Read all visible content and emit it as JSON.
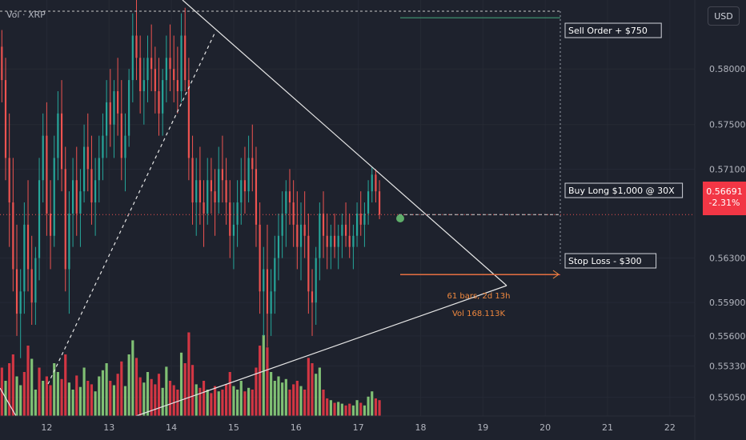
{
  "legend": {
    "volume_label": "Vol · XRP"
  },
  "currency_button": "USD",
  "last_price": {
    "value": "0.56691",
    "change": "-2.31%",
    "color": "#f23645"
  },
  "annotations": {
    "sell_order": "Sell Order + $750",
    "buy_long": "Buy Long $1,000 @ 30X",
    "stop_loss": "Stop Loss - $300",
    "range_bars": "61 bars, 2d 13h",
    "range_vol": "Vol 168.113K"
  },
  "colors": {
    "background": "#1e222d",
    "up": "#26a69a",
    "down": "#ef5350",
    "volume_up": "#8bd17c",
    "volume_down": "#e53946",
    "target_line": "#3f8f6e",
    "stop_line": "#d84346",
    "range_arrow": "#f0883e",
    "trendline": "#e6e6e6",
    "marker": "#5fae6a"
  },
  "chart_data": {
    "type": "candlestick",
    "symbol": "XRP",
    "currency": "USD",
    "x_ticks": [
      "12",
      "13",
      "14",
      "15",
      "16",
      "17",
      "18",
      "19",
      "20",
      "21",
      "22"
    ],
    "y_ticks": [
      "0.58000",
      "0.57500",
      "0.57100",
      "0.56300",
      "0.55900",
      "0.55600",
      "0.55330",
      "0.55050"
    ],
    "y_range": [
      0.5488,
      0.5862
    ],
    "x_range": [
      11.25,
      22.4
    ],
    "last_price": 0.56691,
    "last_change_pct": -2.31,
    "levels": {
      "sell_order": 0.5846,
      "buy_long": 0.56691,
      "stop_loss": 0.5615
    },
    "candles": [
      [
        11.28,
        0.582,
        0.5835,
        0.577,
        0.579
      ],
      [
        11.34,
        0.579,
        0.581,
        0.57,
        0.572
      ],
      [
        11.4,
        0.572,
        0.576,
        0.564,
        0.568
      ],
      [
        11.46,
        0.568,
        0.572,
        0.56,
        0.562
      ],
      [
        11.52,
        0.562,
        0.566,
        0.556,
        0.558
      ],
      [
        11.58,
        0.558,
        0.562,
        0.554,
        0.56
      ],
      [
        11.64,
        0.56,
        0.568,
        0.558,
        0.566
      ],
      [
        11.7,
        0.566,
        0.57,
        0.56,
        0.562
      ],
      [
        11.76,
        0.562,
        0.565,
        0.557,
        0.559
      ],
      [
        11.82,
        0.559,
        0.564,
        0.557,
        0.563
      ],
      [
        11.88,
        0.563,
        0.572,
        0.561,
        0.57
      ],
      [
        11.94,
        0.57,
        0.576,
        0.568,
        0.574
      ],
      [
        12.0,
        0.574,
        0.577,
        0.565,
        0.567
      ],
      [
        12.06,
        0.567,
        0.57,
        0.562,
        0.565
      ],
      [
        12.12,
        0.565,
        0.574,
        0.564,
        0.572
      ],
      [
        12.18,
        0.572,
        0.578,
        0.57,
        0.576
      ],
      [
        12.24,
        0.576,
        0.579,
        0.569,
        0.571
      ],
      [
        12.3,
        0.571,
        0.573,
        0.56,
        0.562
      ],
      [
        12.36,
        0.562,
        0.569,
        0.558,
        0.567
      ],
      [
        12.42,
        0.567,
        0.572,
        0.564,
        0.57
      ],
      [
        12.48,
        0.57,
        0.573,
        0.565,
        0.567
      ],
      [
        12.54,
        0.567,
        0.571,
        0.564,
        0.569
      ],
      [
        12.6,
        0.569,
        0.575,
        0.568,
        0.573
      ],
      [
        12.66,
        0.573,
        0.576,
        0.569,
        0.571
      ],
      [
        12.72,
        0.571,
        0.574,
        0.566,
        0.568
      ],
      [
        12.78,
        0.568,
        0.572,
        0.565,
        0.57
      ],
      [
        12.84,
        0.57,
        0.574,
        0.568,
        0.572
      ],
      [
        12.9,
        0.572,
        0.576,
        0.57,
        0.574
      ],
      [
        12.96,
        0.574,
        0.579,
        0.572,
        0.577
      ],
      [
        13.02,
        0.577,
        0.58,
        0.573,
        0.575
      ],
      [
        13.08,
        0.575,
        0.579,
        0.572,
        0.578
      ],
      [
        13.14,
        0.578,
        0.581,
        0.574,
        0.576
      ],
      [
        13.2,
        0.576,
        0.579,
        0.57,
        0.572
      ],
      [
        13.26,
        0.572,
        0.576,
        0.569,
        0.574
      ],
      [
        13.32,
        0.574,
        0.58,
        0.573,
        0.579
      ],
      [
        13.38,
        0.579,
        0.585,
        0.577,
        0.583
      ],
      [
        13.44,
        0.583,
        0.5862,
        0.579,
        0.581
      ],
      [
        13.5,
        0.581,
        0.583,
        0.576,
        0.578
      ],
      [
        13.56,
        0.578,
        0.581,
        0.575,
        0.579
      ],
      [
        13.62,
        0.579,
        0.583,
        0.577,
        0.581
      ],
      [
        13.68,
        0.581,
        0.584,
        0.578,
        0.58
      ],
      [
        13.74,
        0.58,
        0.582,
        0.576,
        0.578
      ],
      [
        13.8,
        0.578,
        0.581,
        0.574,
        0.576
      ],
      [
        13.86,
        0.576,
        0.58,
        0.574,
        0.579
      ],
      [
        13.92,
        0.579,
        0.583,
        0.577,
        0.581
      ],
      [
        13.98,
        0.581,
        0.584,
        0.578,
        0.58
      ],
      [
        14.04,
        0.58,
        0.583,
        0.577,
        0.579
      ],
      [
        14.1,
        0.579,
        0.582,
        0.576,
        0.578
      ],
      [
        14.16,
        0.578,
        0.585,
        0.577,
        0.583
      ],
      [
        14.22,
        0.583,
        0.5855,
        0.578,
        0.579
      ],
      [
        14.28,
        0.579,
        0.581,
        0.57,
        0.572
      ],
      [
        14.34,
        0.572,
        0.574,
        0.566,
        0.568
      ],
      [
        14.4,
        0.568,
        0.572,
        0.565,
        0.57
      ],
      [
        14.46,
        0.57,
        0.573,
        0.566,
        0.568
      ],
      [
        14.52,
        0.568,
        0.57,
        0.564,
        0.567
      ],
      [
        14.58,
        0.567,
        0.572,
        0.566,
        0.57
      ],
      [
        14.64,
        0.57,
        0.572,
        0.567,
        0.569
      ],
      [
        14.7,
        0.569,
        0.571,
        0.565,
        0.568
      ],
      [
        14.76,
        0.568,
        0.573,
        0.567,
        0.571
      ],
      [
        14.82,
        0.571,
        0.574,
        0.568,
        0.57
      ],
      [
        14.88,
        0.57,
        0.572,
        0.566,
        0.568
      ],
      [
        14.94,
        0.568,
        0.57,
        0.563,
        0.565
      ],
      [
        15.0,
        0.565,
        0.568,
        0.562,
        0.566
      ],
      [
        15.06,
        0.566,
        0.57,
        0.564,
        0.568
      ],
      [
        15.12,
        0.568,
        0.572,
        0.566,
        0.57
      ],
      [
        15.18,
        0.57,
        0.573,
        0.567,
        0.569
      ],
      [
        15.24,
        0.569,
        0.574,
        0.568,
        0.572
      ],
      [
        15.3,
        0.572,
        0.575,
        0.569,
        0.571
      ],
      [
        15.36,
        0.571,
        0.573,
        0.564,
        0.566
      ],
      [
        15.42,
        0.566,
        0.568,
        0.558,
        0.56
      ],
      [
        15.48,
        0.56,
        0.564,
        0.556,
        0.562
      ],
      [
        15.54,
        0.562,
        0.566,
        0.555,
        0.558
      ],
      [
        15.6,
        0.558,
        0.562,
        0.556,
        0.56
      ],
      [
        15.66,
        0.56,
        0.565,
        0.558,
        0.563
      ],
      [
        15.72,
        0.563,
        0.567,
        0.561,
        0.565
      ],
      [
        15.78,
        0.565,
        0.569,
        0.563,
        0.567
      ],
      [
        15.84,
        0.567,
        0.57,
        0.564,
        0.569
      ],
      [
        15.9,
        0.569,
        0.571,
        0.566,
        0.568
      ],
      [
        15.96,
        0.568,
        0.57,
        0.564,
        0.566
      ],
      [
        16.02,
        0.566,
        0.569,
        0.562,
        0.564
      ],
      [
        16.08,
        0.564,
        0.568,
        0.561,
        0.566
      ],
      [
        16.14,
        0.566,
        0.569,
        0.563,
        0.565
      ],
      [
        16.2,
        0.565,
        0.567,
        0.558,
        0.56
      ],
      [
        16.26,
        0.56,
        0.562,
        0.556,
        0.559
      ],
      [
        16.32,
        0.559,
        0.564,
        0.557,
        0.563
      ],
      [
        16.38,
        0.563,
        0.568,
        0.561,
        0.567
      ],
      [
        16.44,
        0.567,
        0.569,
        0.563,
        0.565
      ],
      [
        16.5,
        0.565,
        0.567,
        0.562,
        0.564
      ],
      [
        16.56,
        0.564,
        0.566,
        0.562,
        0.565
      ],
      [
        16.62,
        0.565,
        0.567,
        0.563,
        0.564
      ],
      [
        16.68,
        0.564,
        0.566,
        0.562,
        0.565
      ],
      [
        16.74,
        0.565,
        0.567,
        0.563,
        0.566
      ],
      [
        16.8,
        0.566,
        0.568,
        0.564,
        0.565
      ],
      [
        16.86,
        0.565,
        0.567,
        0.563,
        0.564
      ],
      [
        16.92,
        0.564,
        0.566,
        0.562,
        0.565
      ],
      [
        16.98,
        0.565,
        0.568,
        0.564,
        0.567
      ],
      [
        17.04,
        0.567,
        0.569,
        0.565,
        0.566
      ],
      [
        17.1,
        0.566,
        0.568,
        0.564,
        0.567
      ],
      [
        17.16,
        0.567,
        0.57,
        0.566,
        0.569
      ],
      [
        17.22,
        0.569,
        0.5712,
        0.568,
        0.5705
      ],
      [
        17.28,
        0.5705,
        0.571,
        0.568,
        0.569
      ],
      [
        17.34,
        0.569,
        0.57,
        0.5665,
        0.56691
      ]
    ],
    "volume": [
      [
        11.28,
        0.55,
        "down"
      ],
      [
        11.34,
        0.4,
        "up"
      ],
      [
        11.4,
        0.6,
        "down"
      ],
      [
        11.46,
        0.7,
        "down"
      ],
      [
        11.52,
        0.45,
        "up"
      ],
      [
        11.58,
        0.35,
        "up"
      ],
      [
        11.64,
        0.5,
        "down"
      ],
      [
        11.7,
        0.8,
        "down"
      ],
      [
        11.76,
        0.65,
        "up"
      ],
      [
        11.82,
        0.3,
        "up"
      ],
      [
        11.88,
        0.55,
        "down"
      ],
      [
        11.94,
        0.4,
        "up"
      ],
      [
        12.0,
        0.45,
        "down"
      ],
      [
        12.06,
        0.35,
        "down"
      ],
      [
        12.12,
        0.6,
        "up"
      ],
      [
        12.18,
        0.5,
        "up"
      ],
      [
        12.24,
        0.42,
        "down"
      ],
      [
        12.3,
        0.7,
        "down"
      ],
      [
        12.36,
        0.38,
        "up"
      ],
      [
        12.42,
        0.3,
        "up"
      ],
      [
        12.48,
        0.46,
        "down"
      ],
      [
        12.54,
        0.33,
        "up"
      ],
      [
        12.6,
        0.55,
        "up"
      ],
      [
        12.66,
        0.4,
        "down"
      ],
      [
        12.72,
        0.36,
        "down"
      ],
      [
        12.78,
        0.28,
        "up"
      ],
      [
        12.84,
        0.45,
        "up"
      ],
      [
        12.9,
        0.52,
        "up"
      ],
      [
        12.96,
        0.6,
        "up"
      ],
      [
        13.02,
        0.4,
        "down"
      ],
      [
        13.08,
        0.35,
        "up"
      ],
      [
        13.14,
        0.48,
        "down"
      ],
      [
        13.2,
        0.62,
        "down"
      ],
      [
        13.26,
        0.34,
        "up"
      ],
      [
        13.32,
        0.7,
        "up"
      ],
      [
        13.38,
        0.86,
        "up"
      ],
      [
        13.44,
        0.66,
        "down"
      ],
      [
        13.5,
        0.44,
        "down"
      ],
      [
        13.56,
        0.38,
        "up"
      ],
      [
        13.62,
        0.5,
        "up"
      ],
      [
        13.68,
        0.42,
        "down"
      ],
      [
        13.74,
        0.36,
        "down"
      ],
      [
        13.8,
        0.48,
        "down"
      ],
      [
        13.86,
        0.32,
        "up"
      ],
      [
        13.92,
        0.56,
        "up"
      ],
      [
        13.98,
        0.4,
        "down"
      ],
      [
        14.04,
        0.35,
        "down"
      ],
      [
        14.1,
        0.3,
        "down"
      ],
      [
        14.16,
        0.72,
        "up"
      ],
      [
        14.22,
        0.6,
        "down"
      ],
      [
        14.28,
        0.95,
        "down"
      ],
      [
        14.34,
        0.58,
        "down"
      ],
      [
        14.4,
        0.36,
        "up"
      ],
      [
        14.46,
        0.32,
        "down"
      ],
      [
        14.52,
        0.4,
        "down"
      ],
      [
        14.58,
        0.3,
        "up"
      ],
      [
        14.64,
        0.26,
        "down"
      ],
      [
        14.7,
        0.34,
        "down"
      ],
      [
        14.76,
        0.28,
        "up"
      ],
      [
        14.82,
        0.3,
        "down"
      ],
      [
        14.88,
        0.36,
        "down"
      ],
      [
        14.94,
        0.5,
        "down"
      ],
      [
        15.0,
        0.34,
        "up"
      ],
      [
        15.06,
        0.3,
        "up"
      ],
      [
        15.12,
        0.4,
        "up"
      ],
      [
        15.18,
        0.28,
        "down"
      ],
      [
        15.24,
        0.32,
        "up"
      ],
      [
        15.3,
        0.3,
        "down"
      ],
      [
        15.36,
        0.55,
        "down"
      ],
      [
        15.42,
        0.8,
        "down"
      ],
      [
        15.48,
        0.92,
        "up"
      ],
      [
        15.54,
        0.78,
        "down"
      ],
      [
        15.6,
        0.5,
        "up"
      ],
      [
        15.66,
        0.4,
        "up"
      ],
      [
        15.72,
        0.45,
        "up"
      ],
      [
        15.78,
        0.38,
        "up"
      ],
      [
        15.84,
        0.42,
        "up"
      ],
      [
        15.9,
        0.3,
        "down"
      ],
      [
        15.96,
        0.36,
        "down"
      ],
      [
        16.02,
        0.4,
        "down"
      ],
      [
        16.08,
        0.34,
        "up"
      ],
      [
        16.14,
        0.3,
        "down"
      ],
      [
        16.2,
        0.66,
        "down"
      ],
      [
        16.26,
        0.6,
        "down"
      ],
      [
        16.32,
        0.48,
        "up"
      ],
      [
        16.38,
        0.55,
        "up"
      ],
      [
        16.44,
        0.3,
        "down"
      ],
      [
        16.5,
        0.2,
        "down"
      ],
      [
        16.56,
        0.18,
        "up"
      ],
      [
        16.62,
        0.15,
        "down"
      ],
      [
        16.68,
        0.16,
        "up"
      ],
      [
        16.74,
        0.14,
        "up"
      ],
      [
        16.8,
        0.12,
        "down"
      ],
      [
        16.86,
        0.14,
        "down"
      ],
      [
        16.92,
        0.12,
        "up"
      ],
      [
        16.98,
        0.18,
        "up"
      ],
      [
        17.04,
        0.15,
        "down"
      ],
      [
        17.1,
        0.12,
        "up"
      ],
      [
        17.16,
        0.22,
        "up"
      ],
      [
        17.22,
        0.28,
        "up"
      ],
      [
        17.28,
        0.2,
        "down"
      ],
      [
        17.34,
        0.18,
        "down"
      ]
    ]
  }
}
